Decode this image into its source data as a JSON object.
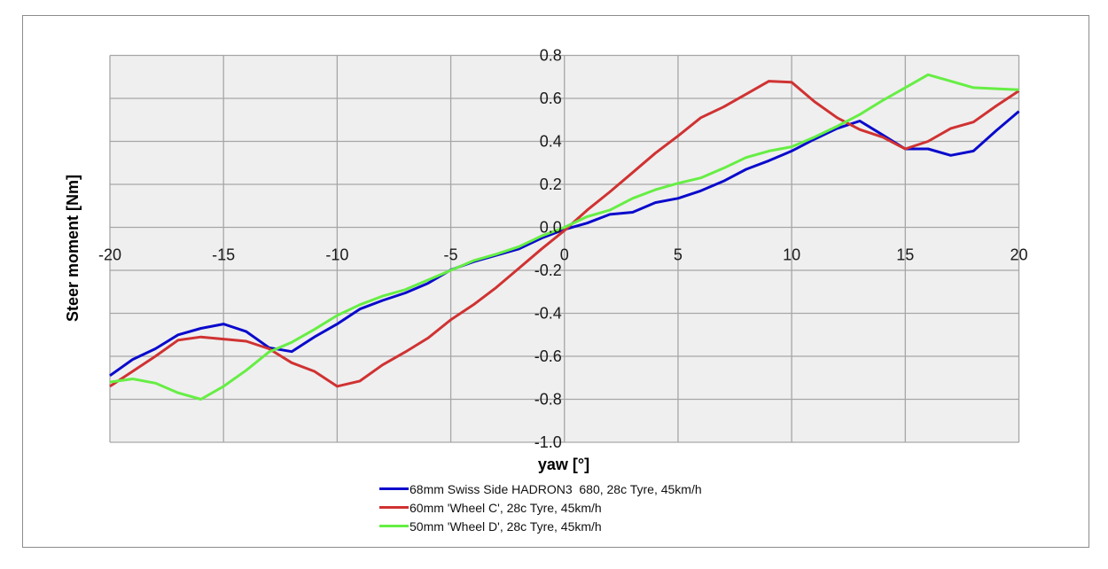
{
  "chart_data": {
    "type": "line",
    "title": "",
    "xlabel": "yaw [°]",
    "ylabel": "Steer moment  [Nm]",
    "xlim": [
      -20,
      20
    ],
    "ylim": [
      -1.0,
      0.8
    ],
    "x_ticks": [
      -20,
      -15,
      -10,
      -5,
      0,
      5,
      10,
      15,
      20
    ],
    "x_tick_labels": [
      "-20",
      "-15",
      "-10",
      "-5",
      "0",
      "5",
      "10",
      "15",
      "20"
    ],
    "y_ticks": [
      0.8,
      0.6,
      0.4,
      0.2,
      0.0,
      -0.2,
      -0.4,
      -0.6,
      -0.8,
      -1.0
    ],
    "y_tick_labels": [
      "0.8",
      "0.6",
      "0.4",
      "0.2",
      "0.0",
      "-0.2",
      "-0.4",
      "-0.6",
      "-0.8",
      "-1.0"
    ],
    "grid": true,
    "legend_position": "bottom",
    "x": [
      -20,
      -19,
      -18,
      -17,
      -16,
      -15,
      -14,
      -13,
      -12,
      -11,
      -10,
      -9,
      -8,
      -7,
      -6,
      -5,
      -4,
      -3,
      -2,
      -1,
      0,
      1,
      2,
      3,
      4,
      5,
      6,
      7,
      8,
      9,
      10,
      11,
      12,
      13,
      14,
      15,
      16,
      17,
      18,
      19,
      20
    ],
    "series": [
      {
        "name": "68mm Swiss Side HADRON3  680, 28c Tyre, 45km/h",
        "color": "#0a0acc",
        "values": [
          -0.69,
          -0.615,
          -0.565,
          -0.5,
          -0.47,
          -0.45,
          -0.485,
          -0.56,
          -0.578,
          -0.51,
          -0.45,
          -0.38,
          -0.34,
          -0.305,
          -0.26,
          -0.198,
          -0.16,
          -0.13,
          -0.1,
          -0.05,
          -0.01,
          0.02,
          0.06,
          0.07,
          0.115,
          0.135,
          0.17,
          0.215,
          0.27,
          0.31,
          0.355,
          0.41,
          0.46,
          0.495,
          0.43,
          0.365,
          0.365,
          0.335,
          0.355,
          0.45,
          0.54
        ]
      },
      {
        "name": "60mm 'Wheel C', 28c Tyre, 45km/h",
        "color": "#d03232",
        "values": [
          -0.74,
          -0.67,
          -0.6,
          -0.525,
          -0.51,
          -0.52,
          -0.53,
          -0.565,
          -0.63,
          -0.67,
          -0.74,
          -0.715,
          -0.64,
          -0.58,
          -0.515,
          -0.43,
          -0.36,
          -0.28,
          -0.19,
          -0.1,
          -0.015,
          0.08,
          0.165,
          0.255,
          0.345,
          0.425,
          0.51,
          0.56,
          0.62,
          0.68,
          0.675,
          0.585,
          0.51,
          0.455,
          0.42,
          0.365,
          0.4,
          0.46,
          0.49,
          0.565,
          0.635
        ]
      },
      {
        "name": "50mm 'Wheel D', 28c Tyre, 45km/h",
        "color": "#66ee44",
        "values": [
          -0.72,
          -0.705,
          -0.725,
          -0.77,
          -0.8,
          -0.74,
          -0.665,
          -0.58,
          -0.535,
          -0.475,
          -0.41,
          -0.36,
          -0.32,
          -0.29,
          -0.245,
          -0.2,
          -0.155,
          -0.125,
          -0.09,
          -0.04,
          0.0,
          0.05,
          0.08,
          0.135,
          0.175,
          0.205,
          0.23,
          0.275,
          0.325,
          0.355,
          0.375,
          0.42,
          0.47,
          0.525,
          0.59,
          0.65,
          0.71,
          0.68,
          0.65,
          0.645,
          0.64
        ]
      }
    ]
  },
  "colors": {
    "plot_background": "#efefef",
    "gridline": "#a6a6a6",
    "frame_border": "#8c8c8c"
  }
}
